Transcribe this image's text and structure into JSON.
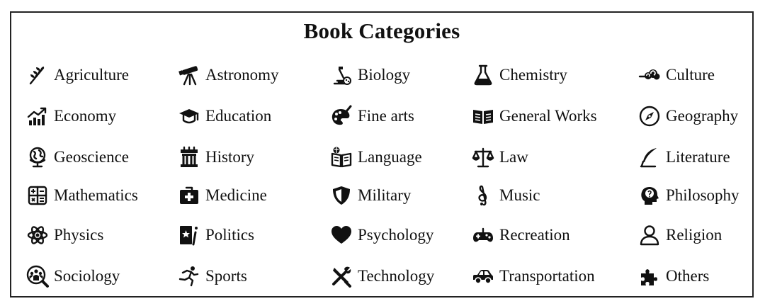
{
  "title": "Book Categories",
  "categories": [
    {
      "label": "Agriculture",
      "icon": "wheat-icon"
    },
    {
      "label": "Astronomy",
      "icon": "telescope-icon"
    },
    {
      "label": "Biology",
      "icon": "microscope-icon"
    },
    {
      "label": "Chemistry",
      "icon": "flask-icon"
    },
    {
      "label": "Culture",
      "icon": "cloud-swirl-icon"
    },
    {
      "label": "Economy",
      "icon": "chart-up-icon"
    },
    {
      "label": "Education",
      "icon": "graduation-cap-icon"
    },
    {
      "label": "Fine arts",
      "icon": "palette-icon"
    },
    {
      "label": "General Works",
      "icon": "open-book-icon"
    },
    {
      "label": "Geography",
      "icon": "compass-icon"
    },
    {
      "label": "Geoscience",
      "icon": "globe-icon"
    },
    {
      "label": "History",
      "icon": "monument-icon"
    },
    {
      "label": "Language",
      "icon": "book-globe-icon"
    },
    {
      "label": "Law",
      "icon": "scales-icon"
    },
    {
      "label": "Literature",
      "icon": "quill-icon"
    },
    {
      "label": "Mathematics",
      "icon": "calculator-icon"
    },
    {
      "label": "Medicine",
      "icon": "medkit-icon"
    },
    {
      "label": "Military",
      "icon": "shield-icon"
    },
    {
      "label": "Music",
      "icon": "treble-clef-icon"
    },
    {
      "label": "Philosophy",
      "icon": "head-question-icon"
    },
    {
      "label": "Physics",
      "icon": "atom-icon"
    },
    {
      "label": "Politics",
      "icon": "book-star-icon"
    },
    {
      "label": "Psychology",
      "icon": "heart-icon"
    },
    {
      "label": "Recreation",
      "icon": "gamepad-icon"
    },
    {
      "label": "Religion",
      "icon": "person-icon"
    },
    {
      "label": "Sociology",
      "icon": "group-search-icon"
    },
    {
      "label": "Sports",
      "icon": "runner-icon"
    },
    {
      "label": "Technology",
      "icon": "tools-icon"
    },
    {
      "label": "Transportation",
      "icon": "car-icon"
    },
    {
      "label": "Others",
      "icon": "puzzle-icon"
    }
  ]
}
